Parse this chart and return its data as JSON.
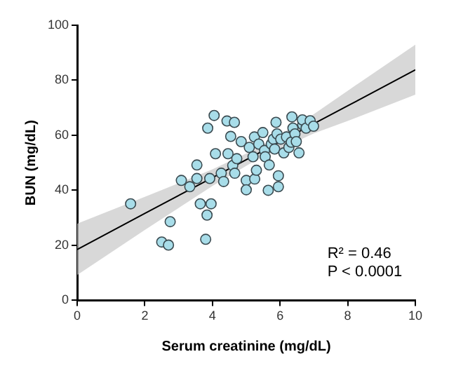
{
  "chart_data": {
    "type": "scatter",
    "xlabel": "Serum creatinine (mg/dL)",
    "ylabel": "BUN (mg/dL)",
    "xlim": [
      0,
      10
    ],
    "ylim": [
      0,
      100
    ],
    "xticks": [
      0,
      2,
      4,
      6,
      8,
      10
    ],
    "yticks": [
      0,
      20,
      40,
      60,
      80,
      100
    ],
    "grid": false,
    "legend": false,
    "annotations": [
      "R² = 0.46",
      "P < 0.0001"
    ],
    "series": [
      {
        "marker": "circle",
        "color": "#a8dde9",
        "x": [
          1.58,
          2.5,
          2.7,
          2.75,
          3.08,
          3.33,
          3.54,
          3.54,
          3.64,
          3.84,
          3.8,
          3.86,
          3.92,
          3.96,
          4.05,
          4.09,
          4.26,
          4.33,
          4.43,
          4.46,
          4.54,
          4.65,
          4.6,
          4.66,
          4.72,
          4.85,
          5.0,
          5.0,
          5.09,
          5.2,
          5.24,
          5.25,
          5.3,
          5.37,
          5.49,
          5.54,
          5.56,
          5.65,
          5.68,
          5.74,
          5.8,
          5.84,
          5.88,
          5.91,
          5.95,
          5.95,
          6.02,
          6.11,
          6.19,
          6.26,
          6.33,
          6.35,
          6.38,
          6.44,
          6.48,
          6.56,
          6.67,
          6.66,
          6.77,
          6.89,
          6.99
        ],
        "values": [
          35.1,
          21.2,
          20.1,
          28.6,
          43.6,
          41.3,
          49.2,
          44.3,
          35.1,
          31.0,
          22.2,
          62.6,
          44.3,
          35.1,
          67.2,
          53.3,
          46.2,
          43.2,
          65.2,
          53.3,
          59.6,
          64.7,
          49.0,
          46.2,
          51.5,
          57.7,
          43.6,
          40.2,
          55.6,
          52.2,
          59.4,
          44.1,
          47.3,
          56.8,
          61.0,
          54.5,
          52.2,
          40.0,
          49.2,
          56.8,
          58.6,
          55.0,
          64.7,
          60.5,
          45.3,
          41.3,
          58.6,
          53.6,
          59.4,
          55.6,
          57.5,
          66.7,
          62.6,
          60.5,
          57.7,
          53.6,
          63.8,
          65.6,
          62.6,
          65.3,
          63.3
        ]
      },
      {
        "type": "line",
        "color": "#000000",
        "x": [
          0,
          2,
          4,
          5.3,
          7,
          8,
          10
        ],
        "values": [
          18.5,
          31.6,
          44.6,
          53.1,
          64.2,
          70.7,
          83.8
        ],
        "lower": [
          9.2,
          25.6,
          41.6,
          51.1,
          60.7,
          65.2,
          74.8
        ],
        "upper": [
          27.9,
          37.6,
          47.6,
          55.1,
          67.7,
          76.2,
          92.9
        ]
      }
    ]
  }
}
